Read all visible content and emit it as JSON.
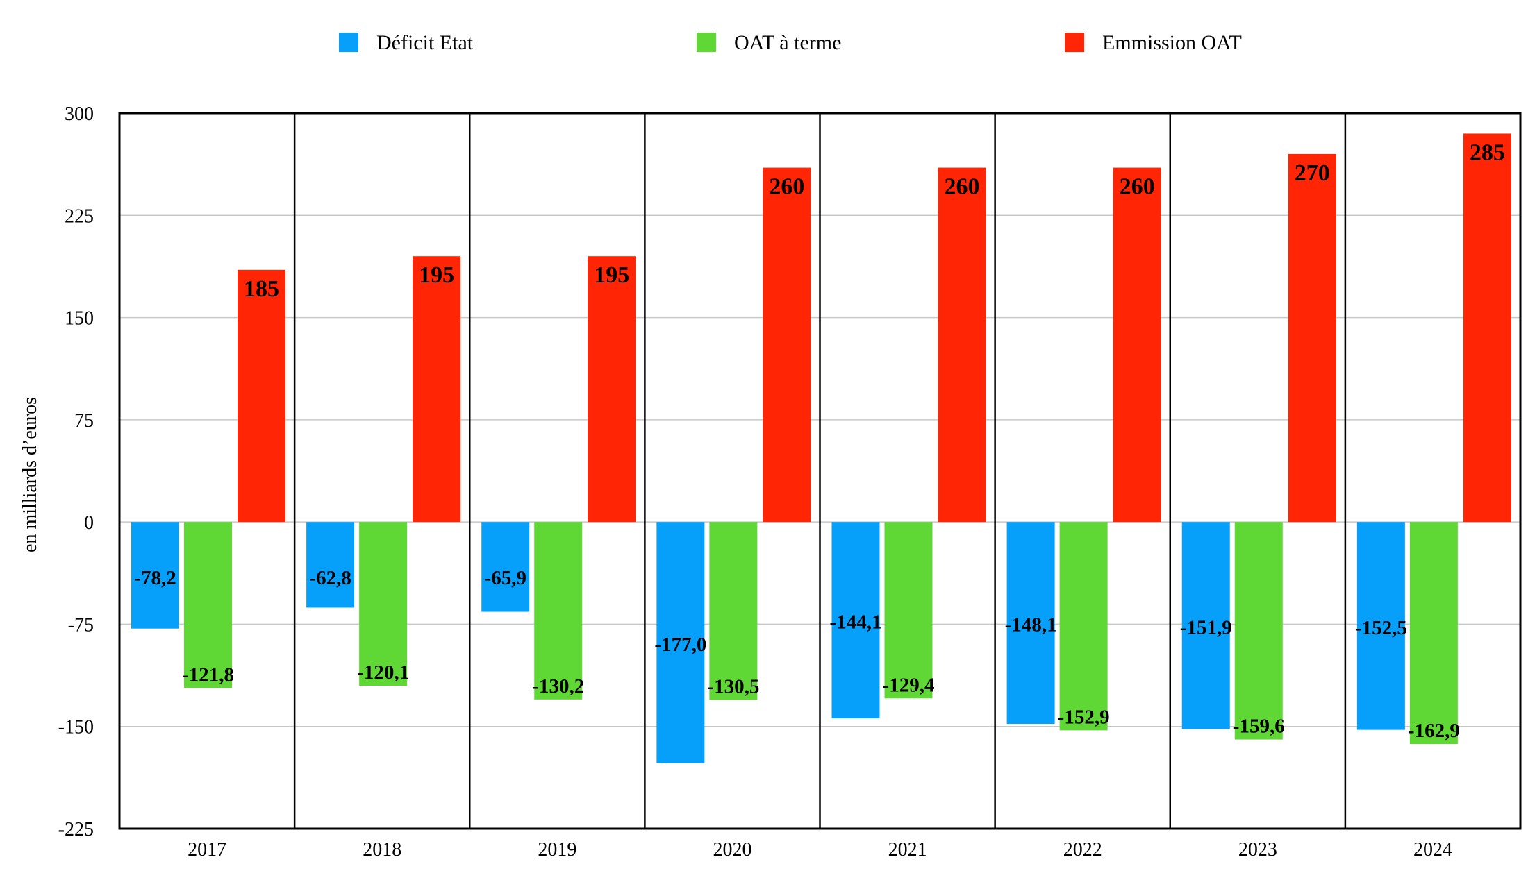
{
  "chart_data": {
    "type": "bar",
    "title": "",
    "xlabel": "",
    "ylabel": "en milliards d’euros",
    "ylim": [
      -225,
      300
    ],
    "yticks": [
      300,
      225,
      150,
      75,
      0,
      -75,
      -150,
      -225
    ],
    "ytick_labels": [
      "300",
      "225",
      "150",
      "75",
      "0",
      "-75",
      "-150",
      "-225"
    ],
    "grid": true,
    "legend_position": "top",
    "categories": [
      "2017",
      "2018",
      "2019",
      "2020",
      "2021",
      "2022",
      "2023",
      "2024"
    ],
    "series": [
      {
        "name": "Déficit Etat",
        "color": "#069FF9",
        "values": [
          -78.2,
          -62.8,
          -65.9,
          -177.0,
          -144.1,
          -148.1,
          -151.9,
          -152.5
        ],
        "labels": [
          "-78,2",
          "-62,8",
          "-65,9",
          "-177,0",
          "-144,1",
          "-148,1",
          "-151,9",
          "-152,5"
        ]
      },
      {
        "name": "OAT à terme",
        "color": "#5FD835",
        "values": [
          -121.8,
          -120.1,
          -130.2,
          -130.5,
          -129.4,
          -152.9,
          -159.6,
          -162.9
        ],
        "labels": [
          "-121,8",
          "-120,1",
          "-130,2",
          "-130,5",
          "-129,4",
          "-152,9",
          "-159,6",
          "-162,9"
        ]
      },
      {
        "name": "Emmission OAT",
        "color": "#FF2505",
        "values": [
          185,
          195,
          195,
          260,
          260,
          260,
          270,
          285
        ],
        "labels": [
          "185",
          "195",
          "195",
          "260",
          "260",
          "260",
          "270",
          "285"
        ]
      }
    ]
  }
}
